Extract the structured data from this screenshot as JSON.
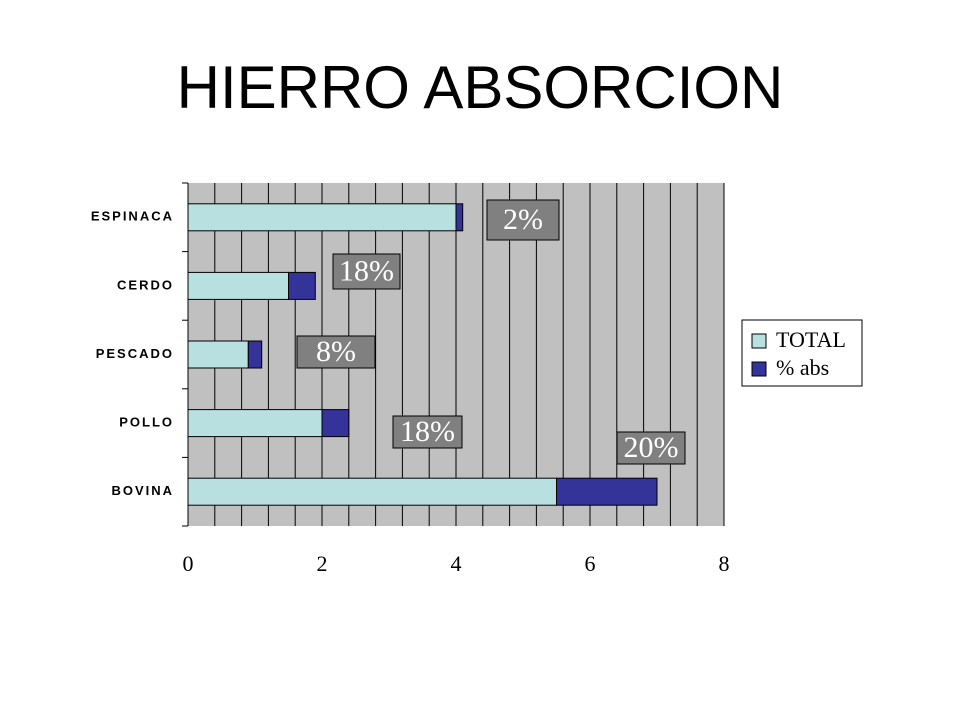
{
  "chart_data": {
    "type": "stacked_barh",
    "title": "HIERRO ABSORCION",
    "categories": [
      "ESPINACA",
      "CERDO",
      "PESCADO",
      "POLLO",
      "BOVINA"
    ],
    "series": [
      {
        "name": "TOTAL",
        "color": "#b8e0e0",
        "values": [
          4,
          1.5,
          0.9,
          2,
          5.5
        ]
      },
      {
        "name": "% abs",
        "color": "#333399",
        "values": [
          0.1,
          0.4,
          0.2,
          0.4,
          1.5
        ]
      }
    ],
    "xlim": [
      0,
      8
    ],
    "xticks": [
      0,
      2,
      4,
      6,
      8
    ],
    "grid": true,
    "legend": "right",
    "annotations": [
      "2%",
      "18%",
      "8%",
      "18%",
      "20%"
    ]
  }
}
